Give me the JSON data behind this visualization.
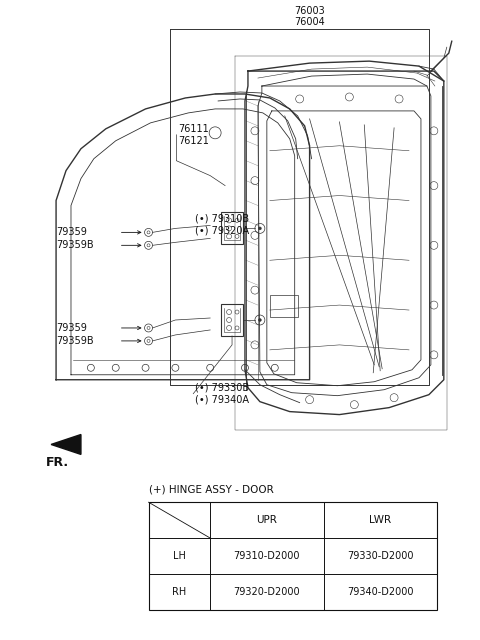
{
  "background_color": "#ffffff",
  "line_color": "#333333",
  "dark_color": "#111111",
  "label_color": "#333333",
  "table_title": "(+) HINGE ASSY - DOOR",
  "table_headers": [
    "",
    "UPR",
    "LWR"
  ],
  "table_rows": [
    [
      "LH",
      "79310-D2000",
      "79330-D2000"
    ],
    [
      "RH",
      "79320-D2000",
      "79340-D2000"
    ]
  ],
  "label_76003": "76003",
  "label_76004": "76004",
  "label_76111": "76111",
  "label_76121": "76121",
  "label_79310B": "(•) 79310B",
  "label_79320A": "(•) 79320A",
  "label_79359_1": "79359",
  "label_79359B_1": "79359B",
  "label_79359_2": "79359",
  "label_79359B_2": "79359B",
  "label_79330B": "(•) 79330B",
  "label_79340A": "(•) 79340A",
  "label_FR": "FR."
}
